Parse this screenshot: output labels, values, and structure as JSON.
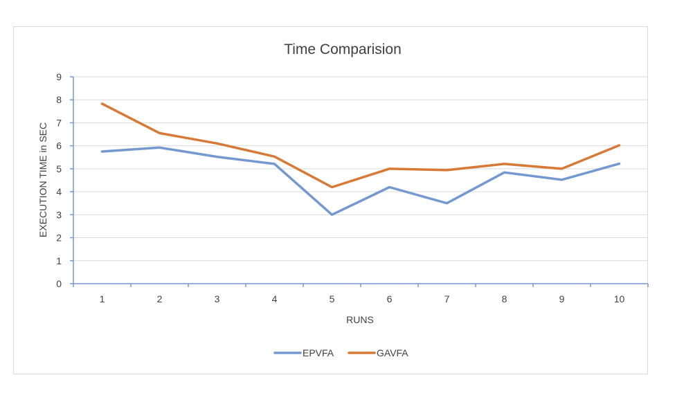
{
  "chart_data": {
    "type": "line",
    "title": "Time Comparision",
    "xlabel": "RUNS",
    "ylabel": "EXECUTION TIME in SEC",
    "categories": [
      "1",
      "2",
      "3",
      "4",
      "5",
      "6",
      "7",
      "8",
      "9",
      "10"
    ],
    "ylim": [
      0,
      9
    ],
    "yticks": [
      "0",
      "1",
      "2",
      "3",
      "4",
      "5",
      "6",
      "7",
      "8",
      "9"
    ],
    "grid": true,
    "legend_position": "bottom",
    "series": [
      {
        "name": "EPVFA",
        "color": "#7399d0",
        "values": [
          5.75,
          5.92,
          5.52,
          5.21,
          3.0,
          4.2,
          3.5,
          4.84,
          4.52,
          5.22
        ]
      },
      {
        "name": "GAVFA",
        "color": "#d87a37",
        "values": [
          7.83,
          6.55,
          6.1,
          5.53,
          4.2,
          5.0,
          4.94,
          5.21,
          5.0,
          6.02
        ]
      }
    ]
  }
}
